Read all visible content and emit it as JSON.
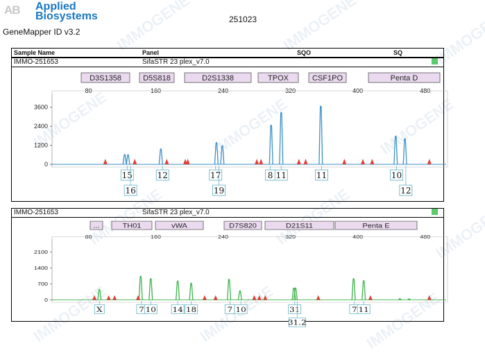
{
  "header": {
    "brand": {
      "mark": "AB",
      "line1": "Applied",
      "line2": "Biosystems"
    },
    "app_name": "GeneMapper ID v3.2",
    "run_id": "251023",
    "watermark": "IMMOGENE"
  },
  "table_header": {
    "sample_name": "Sample Name",
    "panel": "Panel",
    "sqo": "SQO",
    "sq": "SQ"
  },
  "colors": {
    "blue": "#3a8fc7",
    "green": "#3db34a",
    "marker": "#e0403a",
    "locus_fill": "#ead9ef",
    "sq_ok": "#5bcb6b"
  },
  "chart_data": [
    {
      "type": "line",
      "dye": "blue",
      "sample_name": "IMMO-251653",
      "panel": "SifaSTR 23 plex_v7.0",
      "loci": [
        "D3S1358",
        "D5S818",
        "D2S1338",
        "TPOX",
        "CSF1PO",
        "Penta D"
      ],
      "xlim": [
        40,
        500
      ],
      "x_ticks": [
        80,
        160,
        240,
        320,
        400,
        480
      ],
      "ylim": [
        0,
        4200
      ],
      "y_ticks": [
        0,
        1200,
        2400,
        3600
      ],
      "peaks": [
        {
          "x": 123,
          "height": 650
        },
        {
          "x": 127,
          "height": 640
        },
        {
          "x": 166,
          "height": 1000
        },
        {
          "x": 232,
          "height": 1400
        },
        {
          "x": 239,
          "height": 1200
        },
        {
          "x": 297,
          "height": 2500
        },
        {
          "x": 309,
          "height": 3300
        },
        {
          "x": 356,
          "height": 3700
        },
        {
          "x": 445,
          "height": 1800
        },
        {
          "x": 456,
          "height": 1650
        }
      ],
      "markers": [
        100,
        135,
        173,
        195,
        198,
        280,
        285,
        330,
        338,
        384,
        406,
        417,
        485
      ],
      "allele_labels": [
        {
          "x": 126,
          "row": 0,
          "text": "15"
        },
        {
          "x": 130,
          "row": 1,
          "text": "16"
        },
        {
          "x": 168,
          "row": 0,
          "text": "12"
        },
        {
          "x": 231,
          "row": 0,
          "text": "17"
        },
        {
          "x": 235,
          "row": 1,
          "text": "19"
        },
        {
          "x": 296,
          "row": 0,
          "text": "8"
        },
        {
          "x": 309,
          "row": 0,
          "text": "11"
        },
        {
          "x": 357,
          "row": 0,
          "text": "11"
        },
        {
          "x": 446,
          "row": 0,
          "text": "10"
        },
        {
          "x": 457,
          "row": 1,
          "text": "12"
        }
      ]
    },
    {
      "type": "line",
      "dye": "green",
      "sample_name": "IMMO-251653",
      "panel": "SifaSTR 23 plex_v7.0",
      "loci": [
        "...",
        "TH01",
        "vWA",
        "D7S820",
        "D21S11",
        "Penta E"
      ],
      "xlim": [
        40,
        500
      ],
      "x_ticks": [
        80,
        160,
        240,
        320,
        400,
        480
      ],
      "ylim": [
        0,
        2500
      ],
      "y_ticks": [
        0,
        700,
        1400,
        2100
      ],
      "peaks": [
        {
          "x": 93,
          "height": 480
        },
        {
          "x": 142,
          "height": 1050
        },
        {
          "x": 154,
          "height": 950
        },
        {
          "x": 186,
          "height": 850
        },
        {
          "x": 202,
          "height": 750
        },
        {
          "x": 247,
          "height": 920
        },
        {
          "x": 260,
          "height": 420
        },
        {
          "x": 324,
          "height": 540
        },
        {
          "x": 326,
          "height": 540
        },
        {
          "x": 395,
          "height": 950
        },
        {
          "x": 407,
          "height": 860
        },
        {
          "x": 450,
          "height": 80
        },
        {
          "x": 461,
          "height": 70
        }
      ],
      "markers": [
        87,
        104,
        111,
        139,
        218,
        231,
        277,
        283,
        290,
        353,
        415,
        485
      ],
      "allele_labels": [
        {
          "x": 93,
          "row": 0,
          "text": "X"
        },
        {
          "x": 143,
          "row": 0,
          "text": "7"
        },
        {
          "x": 154,
          "row": 0,
          "text": "10"
        },
        {
          "x": 186,
          "row": 0,
          "text": "14"
        },
        {
          "x": 202,
          "row": 0,
          "text": "18"
        },
        {
          "x": 248,
          "row": 0,
          "text": "7"
        },
        {
          "x": 261,
          "row": 0,
          "text": "10"
        },
        {
          "x": 325,
          "row": 0,
          "text": "31"
        },
        {
          "x": 328,
          "row": 1,
          "text": "31.2"
        },
        {
          "x": 396,
          "row": 0,
          "text": "7"
        },
        {
          "x": 407,
          "row": 0,
          "text": "11"
        }
      ]
    }
  ]
}
